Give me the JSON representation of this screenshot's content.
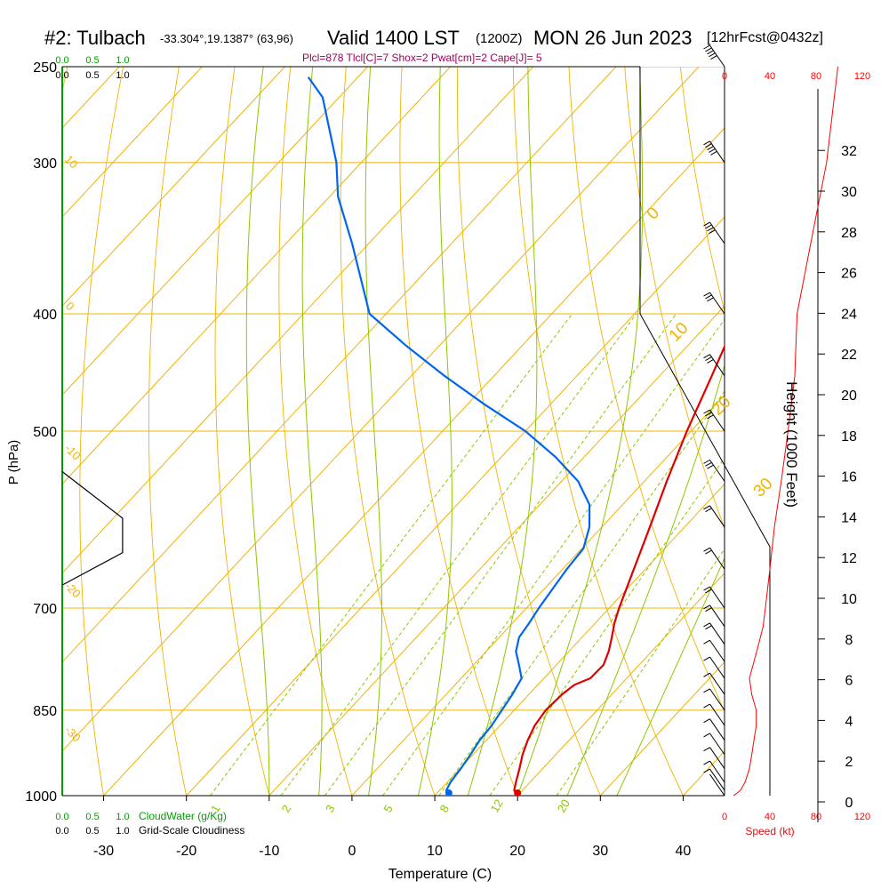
{
  "header": {
    "station": "#2: Tulbach",
    "coords": "-33.304°,19.1387° (63,96)",
    "valid": "Valid 1400 LST",
    "zulu": "(1200Z)",
    "date": "MON 26 Jun 2023",
    "fcst": "[12hrFcst@0432z]"
  },
  "indices": "Plcl=878 Tlcl[C]=7 Shox=2 Pwat[cm]=2 Cape[J]= 5",
  "colors": {
    "isotherm": "#f0b400",
    "dry_adiabat": "#f0b400",
    "moist_adiabat": "#8cc800",
    "mixing_ratio": "#8cc800",
    "temperature": "#e00000",
    "dewpoint": "#0066ee",
    "cloud": "#00a000",
    "speed": "#ff0000"
  },
  "chart_data": {
    "type": "line",
    "xlabel": "Temperature (C)",
    "ylabel": "P (hPa)",
    "y2label": "Height (1000 Feet)",
    "xlim": [
      -35,
      45
    ],
    "ylim": [
      1000,
      250
    ],
    "y_scale": "log",
    "x_ticks": [
      -30,
      -20,
      -10,
      0,
      10,
      20,
      30,
      40
    ],
    "p_ticks": [
      250,
      300,
      400,
      500,
      700,
      850,
      1000
    ],
    "height_ticks": [
      0,
      2,
      4,
      6,
      8,
      10,
      12,
      14,
      16,
      18,
      20,
      22,
      24,
      26,
      28,
      30,
      32
    ],
    "isotherm_labels": [
      {
        "t": 0,
        "label": "0"
      },
      {
        "t": 10,
        "label": "10"
      },
      {
        "t": 20,
        "label": "20"
      },
      {
        "t": 30,
        "label": "30"
      },
      {
        "t": -10,
        "label": "-10"
      },
      {
        "t": -20,
        "label": "-20"
      },
      {
        "t": -30,
        "label": "-30"
      }
    ],
    "side_isotherm_labels": [
      "10",
      "0",
      "-10",
      "-20",
      "-30"
    ],
    "mixing_ratio_labels": [
      "1",
      "2",
      "3",
      "5",
      "8",
      "12",
      "20"
    ],
    "series": [
      {
        "name": "temperature",
        "points": [
          [
            1000,
            20
          ],
          [
            990,
            19
          ],
          [
            975,
            18.3
          ],
          [
            950,
            17.2
          ],
          [
            925,
            16
          ],
          [
            900,
            15
          ],
          [
            875,
            14.2
          ],
          [
            850,
            13.8
          ],
          [
            825,
            14
          ],
          [
            810,
            14.4
          ],
          [
            800,
            15.6
          ],
          [
            780,
            15.7
          ],
          [
            760,
            14.8
          ],
          [
            740,
            13.6
          ],
          [
            720,
            12.3
          ],
          [
            700,
            11.2
          ],
          [
            650,
            8.6
          ],
          [
            600,
            5.8
          ],
          [
            550,
            2.7
          ],
          [
            500,
            -0.5
          ],
          [
            450,
            -3.7
          ],
          [
            400,
            -7.4
          ],
          [
            350,
            -12.3
          ],
          [
            320,
            -15.8
          ],
          [
            300,
            -18.5
          ],
          [
            280,
            -20
          ],
          [
            265,
            -19
          ],
          [
            255,
            -18
          ]
        ]
      },
      {
        "name": "dewpoint",
        "points": [
          [
            1000,
            11.7
          ],
          [
            990,
            10.8
          ],
          [
            975,
            10.4
          ],
          [
            950,
            10.1
          ],
          [
            925,
            9.7
          ],
          [
            900,
            9.2
          ],
          [
            875,
            9.0
          ],
          [
            850,
            8.5
          ],
          [
            825,
            8.0
          ],
          [
            800,
            7.3
          ],
          [
            780,
            5.5
          ],
          [
            760,
            3.6
          ],
          [
            740,
            2.4
          ],
          [
            720,
            2.0
          ],
          [
            700,
            1.5
          ],
          [
            650,
            0.5
          ],
          [
            625,
            0.2
          ],
          [
            600,
            -1.5
          ],
          [
            575,
            -4.0
          ],
          [
            550,
            -8.0
          ],
          [
            525,
            -13.5
          ],
          [
            500,
            -20.0
          ],
          [
            475,
            -28.0
          ],
          [
            450,
            -36.0
          ],
          [
            425,
            -44.0
          ],
          [
            400,
            -52.0
          ],
          [
            350,
            -62.0
          ],
          [
            320,
            -69.0
          ],
          [
            300,
            -73.0
          ],
          [
            280,
            -78.0
          ],
          [
            265,
            -82.0
          ],
          [
            255,
            -86.0
          ]
        ]
      }
    ],
    "speed_axis": {
      "ticks": [
        0,
        40,
        80,
        120
      ],
      "label": "Speed (kt)"
    },
    "cloud_axis": {
      "ticks_top": [
        "0.0",
        "0.5",
        "1.0"
      ],
      "ticks_bottom": [
        "0.0",
        "0.5",
        "1.0"
      ],
      "label_water": "CloudWater (g/Kg)",
      "label_cloudiness": "Grid-Scale Cloudiness"
    },
    "wind_profile": [
      [
        1000,
        20,
        4
      ],
      [
        990,
        21,
        7
      ],
      [
        975,
        22,
        9
      ],
      [
        950,
        24,
        11
      ],
      [
        925,
        26,
        12
      ],
      [
        900,
        28,
        13
      ],
      [
        875,
        30,
        14
      ],
      [
        850,
        32,
        14
      ],
      [
        825,
        31,
        12
      ],
      [
        800,
        30,
        11
      ],
      [
        775,
        31,
        13
      ],
      [
        750,
        28,
        15
      ],
      [
        725,
        30,
        17
      ],
      [
        700,
        29,
        18
      ],
      [
        650,
        30,
        20
      ],
      [
        600,
        30,
        22
      ],
      [
        550,
        31,
        25
      ],
      [
        500,
        33,
        28
      ],
      [
        450,
        35,
        31
      ],
      [
        400,
        38,
        32
      ],
      [
        350,
        38,
        38
      ],
      [
        300,
        38,
        45
      ],
      [
        250,
        40,
        50
      ]
    ],
    "cloudiness_profile": [
      [
        540,
        0.0
      ],
      [
        590,
        0.7
      ],
      [
        630,
        0.7
      ],
      [
        670,
        0.0
      ]
    ]
  }
}
